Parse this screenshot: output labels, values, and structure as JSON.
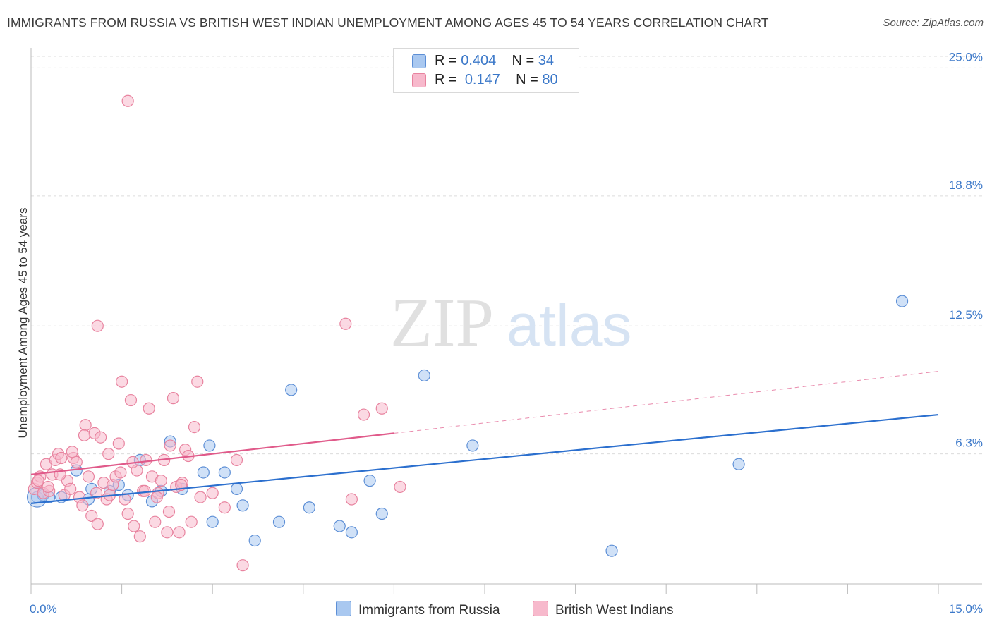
{
  "title": "IMMIGRANTS FROM RUSSIA VS BRITISH WEST INDIAN UNEMPLOYMENT AMONG AGES 45 TO 54 YEARS CORRELATION CHART",
  "source": "Source: ZipAtlas.com",
  "watermark": {
    "zip": "ZIP",
    "atlas": "atlas"
  },
  "legend": {
    "russia": {
      "r_label": "R =",
      "r_value": "0.404",
      "n_label": "N =",
      "n_value": "34"
    },
    "bwi": {
      "r_label": "R =",
      "r_value": "0.147",
      "n_label": "N =",
      "n_value": "80"
    }
  },
  "bottom_legend": {
    "russia": "Immigrants from Russia",
    "bwi": "British West Indians"
  },
  "colors": {
    "russia_fill": "#a9c8f0",
    "russia_stroke": "#5d8fd6",
    "russia_line": "#2b6fce",
    "bwi_fill": "#f7b9cc",
    "bwi_stroke": "#e8839f",
    "bwi_line": "#e05a8a",
    "tick_text": "#3b78c9",
    "grid": "#dcdcdc"
  },
  "chart_data": {
    "type": "scatter",
    "title": "IMMIGRANTS FROM RUSSIA VS BRITISH WEST INDIAN UNEMPLOYMENT AMONG AGES 45 TO 54 YEARS CORRELATION CHART",
    "xlabel": "",
    "ylabel": "Unemployment Among Ages 45 to 54 years",
    "xlim": [
      0,
      15
    ],
    "ylim": [
      0,
      25.8
    ],
    "x_tick_labels": {
      "left": "0.0%",
      "right": "15.0%"
    },
    "y_ticks": [
      {
        "value": 6.3,
        "label": "6.3%"
      },
      {
        "value": 12.5,
        "label": "12.5%"
      },
      {
        "value": 18.8,
        "label": "18.8%"
      },
      {
        "value": 25.0,
        "label": "25.0%"
      }
    ],
    "series": [
      {
        "name": "Immigrants from Russia",
        "key": "russia",
        "trend": {
          "x0": 0,
          "y0": 3.9,
          "x1": 15,
          "y1": 8.2,
          "dashed_from": null
        },
        "points": [
          [
            0.1,
            4.2
          ],
          [
            0.2,
            4.3
          ],
          [
            0.3,
            4.2
          ],
          [
            0.5,
            4.2
          ],
          [
            0.75,
            5.5
          ],
          [
            0.95,
            4.1
          ],
          [
            1.0,
            4.6
          ],
          [
            1.3,
            4.5
          ],
          [
            1.45,
            4.8
          ],
          [
            1.6,
            4.3
          ],
          [
            1.8,
            6.0
          ],
          [
            2.0,
            4.0
          ],
          [
            2.15,
            4.5
          ],
          [
            2.3,
            6.9
          ],
          [
            2.5,
            4.6
          ],
          [
            2.85,
            5.4
          ],
          [
            2.95,
            6.7
          ],
          [
            3.0,
            3.0
          ],
          [
            3.2,
            5.4
          ],
          [
            3.4,
            4.6
          ],
          [
            3.5,
            3.8
          ],
          [
            3.7,
            2.1
          ],
          [
            4.1,
            3.0
          ],
          [
            4.3,
            9.4
          ],
          [
            4.6,
            3.7
          ],
          [
            5.1,
            2.8
          ],
          [
            5.3,
            2.5
          ],
          [
            5.6,
            5.0
          ],
          [
            5.8,
            3.4
          ],
          [
            6.5,
            10.1
          ],
          [
            7.3,
            6.7
          ],
          [
            9.6,
            1.6
          ],
          [
            11.7,
            5.8
          ],
          [
            14.4,
            13.7
          ]
        ]
      },
      {
        "name": "British West Indians",
        "key": "bwi",
        "trend": {
          "x0": 0,
          "y0": 5.3,
          "x1": 15,
          "y1": 10.3,
          "dashed_from": 6.0
        },
        "points": [
          [
            0.05,
            4.6
          ],
          [
            0.1,
            4.9
          ],
          [
            0.15,
            5.2
          ],
          [
            0.2,
            4.4
          ],
          [
            0.25,
            5.8
          ],
          [
            0.3,
            4.5
          ],
          [
            0.35,
            5.3
          ],
          [
            0.4,
            6.0
          ],
          [
            0.45,
            6.3
          ],
          [
            0.5,
            6.1
          ],
          [
            0.55,
            4.3
          ],
          [
            0.6,
            5.0
          ],
          [
            0.65,
            4.6
          ],
          [
            0.7,
            6.1
          ],
          [
            0.75,
            5.9
          ],
          [
            0.8,
            4.2
          ],
          [
            0.85,
            3.8
          ],
          [
            0.9,
            7.7
          ],
          [
            0.95,
            5.2
          ],
          [
            1.0,
            3.3
          ],
          [
            1.05,
            7.3
          ],
          [
            1.1,
            2.9
          ],
          [
            1.15,
            7.1
          ],
          [
            1.2,
            4.9
          ],
          [
            1.25,
            4.1
          ],
          [
            1.3,
            4.3
          ],
          [
            1.35,
            4.8
          ],
          [
            1.4,
            5.2
          ],
          [
            1.45,
            6.8
          ],
          [
            1.5,
            9.8
          ],
          [
            1.55,
            4.1
          ],
          [
            1.6,
            3.4
          ],
          [
            1.65,
            8.9
          ],
          [
            1.7,
            2.8
          ],
          [
            1.75,
            5.5
          ],
          [
            1.8,
            2.3
          ],
          [
            1.85,
            4.5
          ],
          [
            1.9,
            6.0
          ],
          [
            1.95,
            8.5
          ],
          [
            2.0,
            5.2
          ],
          [
            2.05,
            3.0
          ],
          [
            2.1,
            4.4
          ],
          [
            2.15,
            5.0
          ],
          [
            2.2,
            6.0
          ],
          [
            2.25,
            2.5
          ],
          [
            2.3,
            6.7
          ],
          [
            2.35,
            9.0
          ],
          [
            2.4,
            4.7
          ],
          [
            2.45,
            2.5
          ],
          [
            2.5,
            4.9
          ],
          [
            2.55,
            6.5
          ],
          [
            2.6,
            6.2
          ],
          [
            2.65,
            3.0
          ],
          [
            2.7,
            7.6
          ],
          [
            2.75,
            9.8
          ],
          [
            2.8,
            4.2
          ],
          [
            3.0,
            4.4
          ],
          [
            3.2,
            3.7
          ],
          [
            3.4,
            6.0
          ],
          [
            3.5,
            0.9
          ],
          [
            1.1,
            12.5
          ],
          [
            1.6,
            23.4
          ],
          [
            5.2,
            12.6
          ],
          [
            5.3,
            4.1
          ],
          [
            5.5,
            8.2
          ],
          [
            5.8,
            8.5
          ],
          [
            6.1,
            4.7
          ],
          [
            0.12,
            5.0
          ],
          [
            0.28,
            4.7
          ],
          [
            0.48,
            5.3
          ],
          [
            0.68,
            6.4
          ],
          [
            0.88,
            7.2
          ],
          [
            1.08,
            4.4
          ],
          [
            1.28,
            6.3
          ],
          [
            1.48,
            5.4
          ],
          [
            1.68,
            5.9
          ],
          [
            1.88,
            4.5
          ],
          [
            2.08,
            4.2
          ],
          [
            2.28,
            3.5
          ],
          [
            2.48,
            4.8
          ]
        ]
      }
    ]
  }
}
